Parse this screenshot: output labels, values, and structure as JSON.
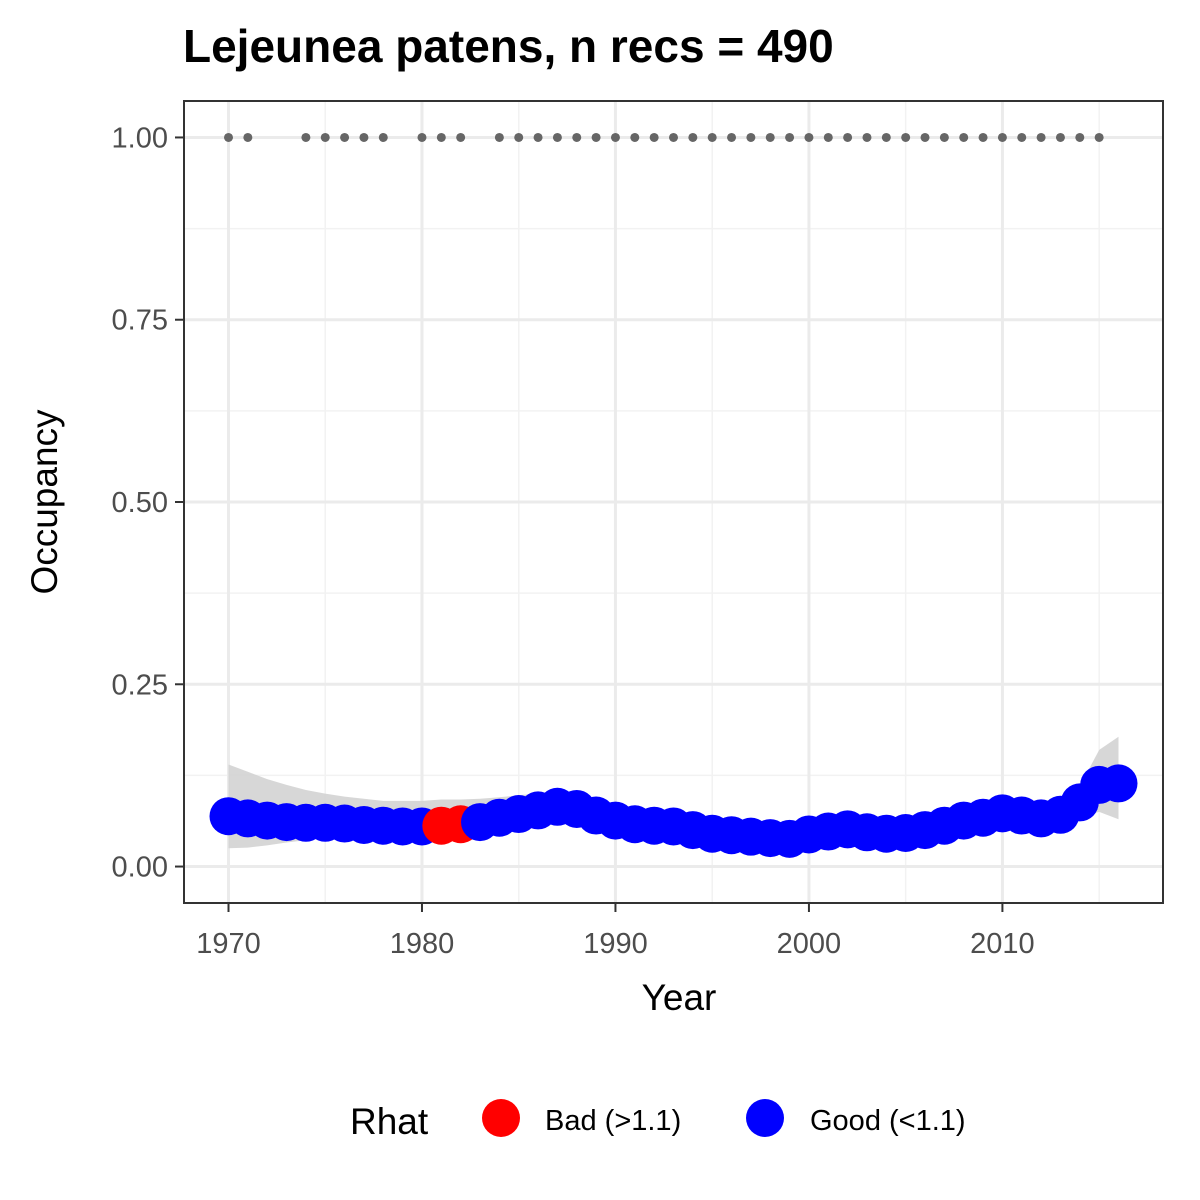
{
  "chart_data": {
    "type": "scatter",
    "title": "Lejeunea patens, n recs = 490",
    "xlabel": "Year",
    "ylabel": "Occupancy",
    "xlim": [
      1967.7,
      2018.3
    ],
    "ylim": [
      -0.05,
      1.05
    ],
    "x_ticks": [
      1970,
      1980,
      1990,
      2000,
      2010
    ],
    "x_tick_labels": [
      "1970",
      "1980",
      "1990",
      "2000",
      "2010"
    ],
    "y_ticks": [
      0,
      0.25,
      0.5,
      0.75,
      1.0
    ],
    "y_tick_labels": [
      "0.00",
      "0.25",
      "0.50",
      "0.75",
      "1.00"
    ],
    "grid": true,
    "legend": {
      "title": "Rhat",
      "position": "bottom",
      "entries": [
        {
          "label": "Bad (>1.1)",
          "color": "#ff0000"
        },
        {
          "label": "Good (<1.1)",
          "color": "#0000ff"
        }
      ]
    },
    "colors": {
      "bad": "#ff0000",
      "good": "#0000ff",
      "records": "#666666",
      "ribbon": "#d3d3d3"
    },
    "record_years": [
      1970,
      1971,
      1974,
      1975,
      1976,
      1977,
      1978,
      1980,
      1981,
      1982,
      1984,
      1985,
      1986,
      1987,
      1988,
      1989,
      1990,
      1991,
      1992,
      1993,
      1994,
      1995,
      1996,
      1997,
      1998,
      1999,
      2000,
      2001,
      2002,
      2003,
      2004,
      2005,
      2006,
      2007,
      2008,
      2009,
      2010,
      2011,
      2012,
      2013,
      2014,
      2015
    ],
    "record_value": 1.0,
    "series": [
      {
        "x": [
          1970,
          1971,
          1972,
          1973,
          1974,
          1975,
          1976,
          1977,
          1978,
          1979,
          1980,
          1981,
          1982,
          1983,
          1984,
          1985,
          1986,
          1987,
          1988,
          1989,
          1990,
          1991,
          1992,
          1993,
          1994,
          1995,
          1996,
          1997,
          1998,
          1999,
          2000,
          2001,
          2002,
          2003,
          2004,
          2005,
          2006,
          2007,
          2008,
          2009,
          2010,
          2011,
          2012,
          2013,
          2014,
          2015,
          2016
        ],
        "y": [
          0.069,
          0.066,
          0.063,
          0.061,
          0.06,
          0.06,
          0.059,
          0.057,
          0.056,
          0.055,
          0.055,
          0.056,
          0.058,
          0.061,
          0.067,
          0.072,
          0.077,
          0.082,
          0.079,
          0.07,
          0.063,
          0.058,
          0.056,
          0.055,
          0.05,
          0.045,
          0.043,
          0.041,
          0.039,
          0.038,
          0.044,
          0.048,
          0.051,
          0.047,
          0.045,
          0.046,
          0.05,
          0.056,
          0.063,
          0.067,
          0.073,
          0.07,
          0.066,
          0.071,
          0.088,
          0.112,
          0.114
        ],
        "rhat": [
          "good",
          "good",
          "good",
          "good",
          "good",
          "good",
          "good",
          "good",
          "good",
          "good",
          "good",
          "bad",
          "bad",
          "good",
          "good",
          "good",
          "good",
          "good",
          "good",
          "good",
          "good",
          "good",
          "good",
          "good",
          "good",
          "good",
          "good",
          "good",
          "good",
          "good",
          "good",
          "good",
          "good",
          "good",
          "good",
          "good",
          "good",
          "good",
          "good",
          "good",
          "good",
          "good",
          "good",
          "good",
          "good",
          "good",
          "good"
        ],
        "lower": [
          0.025,
          0.026,
          0.029,
          0.033,
          0.036,
          0.039,
          0.041,
          0.042,
          0.043,
          0.043,
          0.043,
          0.044,
          0.047,
          0.05,
          0.055,
          0.059,
          0.062,
          0.065,
          0.062,
          0.055,
          0.049,
          0.045,
          0.043,
          0.041,
          0.037,
          0.033,
          0.031,
          0.029,
          0.027,
          0.026,
          0.031,
          0.035,
          0.037,
          0.034,
          0.032,
          0.034,
          0.038,
          0.043,
          0.05,
          0.054,
          0.059,
          0.057,
          0.053,
          0.055,
          0.068,
          0.075,
          0.065
        ],
        "upper": [
          0.14,
          0.13,
          0.12,
          0.112,
          0.105,
          0.1,
          0.096,
          0.093,
          0.09,
          0.09,
          0.09,
          0.092,
          0.092,
          0.093,
          0.095,
          0.098,
          0.1,
          0.103,
          0.1,
          0.092,
          0.085,
          0.078,
          0.075,
          0.072,
          0.068,
          0.063,
          0.06,
          0.058,
          0.057,
          0.057,
          0.062,
          0.065,
          0.068,
          0.064,
          0.062,
          0.063,
          0.067,
          0.072,
          0.08,
          0.085,
          0.09,
          0.088,
          0.085,
          0.092,
          0.11,
          0.16,
          0.178
        ]
      }
    ]
  }
}
